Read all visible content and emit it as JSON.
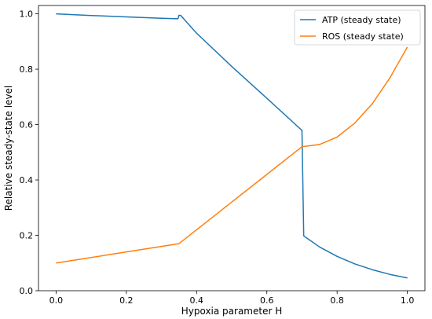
{
  "chart_data": {
    "type": "line",
    "xlabel": "Hypoxia parameter H",
    "ylabel": "Relative steady-state level",
    "xlim": [
      -0.05,
      1.05
    ],
    "ylim": [
      0.0,
      1.03
    ],
    "xticks": [
      "0.0",
      "0.2",
      "0.4",
      "0.6",
      "0.8",
      "1.0"
    ],
    "xtick_values": [
      0.0,
      0.2,
      0.4,
      0.6,
      0.8,
      1.0
    ],
    "yticks": [
      "0.0",
      "0.2",
      "0.4",
      "0.6",
      "0.8",
      "1.0"
    ],
    "ytick_values": [
      0.0,
      0.2,
      0.4,
      0.6,
      0.8,
      1.0
    ],
    "grid": false,
    "legend_position": "top-right",
    "series": [
      {
        "name": "ATP (steady state)",
        "color": "#1f77b4",
        "x": [
          0.0,
          0.1,
          0.2,
          0.3,
          0.347,
          0.35,
          0.355,
          0.4,
          0.5,
          0.6,
          0.699,
          0.7,
          0.705,
          0.75,
          0.8,
          0.85,
          0.9,
          0.95,
          1.0
        ],
        "y": [
          1.0,
          0.994,
          0.989,
          0.984,
          0.982,
          0.995,
          0.994,
          0.93,
          0.81,
          0.695,
          0.58,
          0.58,
          0.198,
          0.158,
          0.124,
          0.097,
          0.076,
          0.059,
          0.046
        ]
      },
      {
        "name": "ROS (steady state)",
        "color": "#ff7f0e",
        "x": [
          0.0,
          0.1,
          0.2,
          0.3,
          0.35,
          0.4,
          0.5,
          0.6,
          0.7,
          0.75,
          0.8,
          0.85,
          0.9,
          0.95,
          1.0
        ],
        "y": [
          0.1,
          0.12,
          0.14,
          0.16,
          0.17,
          0.22,
          0.32,
          0.42,
          0.52,
          0.528,
          0.555,
          0.605,
          0.675,
          0.768,
          0.88
        ]
      }
    ]
  }
}
